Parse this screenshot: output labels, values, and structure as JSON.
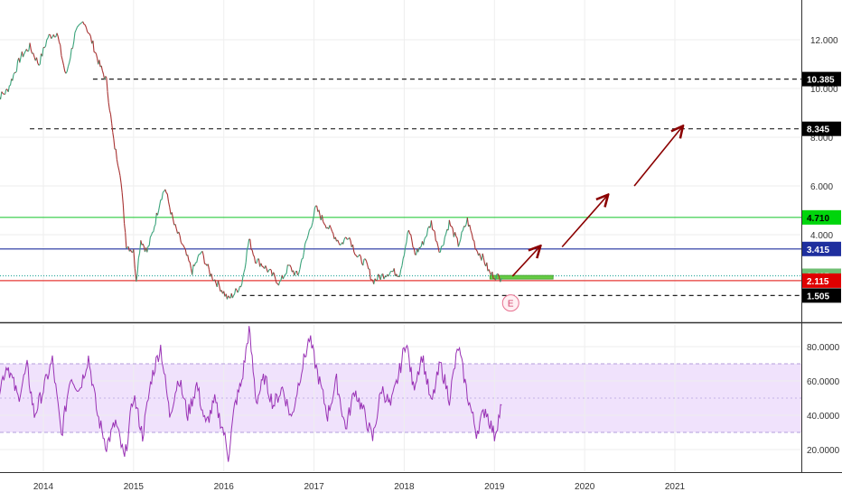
{
  "chart_data": [
    {
      "type": "line",
      "title": "",
      "xlabel": "",
      "ylabel": "",
      "x_ticks": [
        "2014",
        "2015",
        "2016",
        "2017",
        "2018",
        "2019",
        "2020",
        "2021"
      ],
      "y_ticks": [
        "12.000",
        "10.000",
        "8.000",
        "6.000",
        "4.000"
      ],
      "ylim": [
        1.0,
        13.6
      ],
      "grid": true,
      "series": [
        {
          "name": "",
          "color": "#a83232",
          "points": [
            [
              2013.45,
              9.5
            ],
            [
              2013.6,
              9.9
            ],
            [
              2013.75,
              11.3
            ],
            [
              2013.85,
              11.7
            ],
            [
              2013.95,
              11.0
            ],
            [
              2014.05,
              12.1
            ],
            [
              2014.15,
              12.3
            ],
            [
              2014.25,
              10.5
            ],
            [
              2014.35,
              12.2
            ],
            [
              2014.45,
              12.8
            ],
            [
              2014.55,
              11.8
            ],
            [
              2014.62,
              11.0
            ],
            [
              2014.7,
              10.3
            ],
            [
              2014.78,
              7.8
            ],
            [
              2014.85,
              6.6
            ],
            [
              2014.92,
              3.6
            ],
            [
              2015.0,
              3.3
            ],
            [
              2015.03,
              2.2
            ],
            [
              2015.08,
              3.8
            ],
            [
              2015.15,
              3.3
            ],
            [
              2015.22,
              4.2
            ],
            [
              2015.3,
              5.5
            ],
            [
              2015.35,
              5.9
            ],
            [
              2015.45,
              4.4
            ],
            [
              2015.55,
              3.5
            ],
            [
              2015.65,
              2.5
            ],
            [
              2015.75,
              3.3
            ],
            [
              2015.85,
              2.4
            ],
            [
              2015.95,
              1.9
            ],
            [
              2016.05,
              1.35
            ],
            [
              2016.12,
              1.6
            ],
            [
              2016.2,
              2.0
            ],
            [
              2016.28,
              3.8
            ],
            [
              2016.35,
              3.0
            ],
            [
              2016.45,
              2.7
            ],
            [
              2016.55,
              2.3
            ],
            [
              2016.62,
              2.0
            ],
            [
              2016.72,
              2.7
            ],
            [
              2016.82,
              2.3
            ],
            [
              2016.9,
              3.5
            ],
            [
              2017.02,
              5.1
            ],
            [
              2017.1,
              4.6
            ],
            [
              2017.2,
              4.1
            ],
            [
              2017.3,
              3.6
            ],
            [
              2017.38,
              4.0
            ],
            [
              2017.48,
              3.1
            ],
            [
              2017.58,
              2.8
            ],
            [
              2017.65,
              2.1
            ],
            [
              2017.75,
              2.3
            ],
            [
              2017.85,
              2.5
            ],
            [
              2017.95,
              2.4
            ],
            [
              2018.05,
              4.2
            ],
            [
              2018.12,
              3.2
            ],
            [
              2018.2,
              3.6
            ],
            [
              2018.3,
              4.5
            ],
            [
              2018.4,
              3.3
            ],
            [
              2018.5,
              4.5
            ],
            [
              2018.6,
              3.6
            ],
            [
              2018.7,
              4.6
            ],
            [
              2018.8,
              3.4
            ],
            [
              2018.88,
              3.0
            ],
            [
              2018.95,
              2.4
            ],
            [
              2019.05,
              2.25
            ],
            [
              2019.08,
              2.22
            ]
          ]
        },
        {
          "name": "",
          "color": "#9932b5",
          "points": [
            [
              2013.45,
              45
            ],
            [
              2013.6,
              70
            ],
            [
              2013.72,
              50
            ],
            [
              2013.82,
              68
            ],
            [
              2013.9,
              40
            ],
            [
              2014.0,
              55
            ],
            [
              2014.1,
              72
            ],
            [
              2014.2,
              28
            ],
            [
              2014.3,
              63
            ],
            [
              2014.4,
              55
            ],
            [
              2014.5,
              74
            ],
            [
              2014.6,
              40
            ],
            [
              2014.7,
              22
            ],
            [
              2014.8,
              36
            ],
            [
              2014.9,
              14
            ],
            [
              2015.0,
              52
            ],
            [
              2015.1,
              28
            ],
            [
              2015.2,
              62
            ],
            [
              2015.3,
              80
            ],
            [
              2015.4,
              40
            ],
            [
              2015.5,
              62
            ],
            [
              2015.6,
              40
            ],
            [
              2015.7,
              58
            ],
            [
              2015.8,
              34
            ],
            [
              2015.9,
              48
            ],
            [
              2016.0,
              30
            ],
            [
              2016.05,
              16
            ],
            [
              2016.12,
              45
            ],
            [
              2016.2,
              60
            ],
            [
              2016.28,
              90
            ],
            [
              2016.36,
              48
            ],
            [
              2016.45,
              62
            ],
            [
              2016.55,
              46
            ],
            [
              2016.65,
              56
            ],
            [
              2016.75,
              38
            ],
            [
              2016.85,
              64
            ],
            [
              2016.95,
              85
            ],
            [
              2017.05,
              62
            ],
            [
              2017.15,
              40
            ],
            [
              2017.25,
              60
            ],
            [
              2017.35,
              32
            ],
            [
              2017.45,
              55
            ],
            [
              2017.55,
              42
            ],
            [
              2017.65,
              26
            ],
            [
              2017.75,
              56
            ],
            [
              2017.85,
              45
            ],
            [
              2017.95,
              66
            ],
            [
              2018.02,
              84
            ],
            [
              2018.1,
              56
            ],
            [
              2018.2,
              75
            ],
            [
              2018.3,
              46
            ],
            [
              2018.4,
              70
            ],
            [
              2018.5,
              50
            ],
            [
              2018.6,
              80
            ],
            [
              2018.7,
              52
            ],
            [
              2018.8,
              30
            ],
            [
              2018.9,
              44
            ],
            [
              2019.0,
              28
            ],
            [
              2019.08,
              46
            ]
          ]
        }
      ],
      "levels": [
        {
          "value": 10.385,
          "label": "10.385",
          "style": "dashed",
          "color": "#222222",
          "from": 2014.55
        },
        {
          "value": 8.345,
          "label": "8.345",
          "style": "dashed",
          "color": "#222222",
          "from": 2013.85
        },
        {
          "value": 4.71,
          "label": "4.710",
          "style": "solid",
          "color": "#2ecc40",
          "from": 2013.4
        },
        {
          "value": 3.415,
          "label": "3.415",
          "style": "solid",
          "color": "#1f2f9e",
          "from": 2013.4
        },
        {
          "value": 2.315,
          "label": "2.315",
          "style": "dotted",
          "color": "#26a69a",
          "from": 2013.4
        },
        {
          "value": 2.115,
          "label": "2.115",
          "style": "solid",
          "color": "#e53935",
          "from": 2013.4
        },
        {
          "value": 1.505,
          "label": "1.505",
          "style": "dashed",
          "color": "#222222",
          "from": 2016.2
        }
      ],
      "price_badges": [
        {
          "value": 10.385,
          "label": "10.385",
          "bg": "#000000",
          "fg": "#ffffff"
        },
        {
          "value": 8.345,
          "label": "8.345",
          "bg": "#000000",
          "fg": "#ffffff"
        },
        {
          "value": 4.71,
          "label": "4.710",
          "bg": "#00d50c",
          "fg": "#000000"
        },
        {
          "value": 3.415,
          "label": "3.415",
          "bg": "#1f2f9e",
          "fg": "#ffffff"
        },
        {
          "value": 2.315,
          "label": "2.315",
          "bg": "#6fbf73",
          "fg": "#ffffff"
        },
        {
          "value": 2.115,
          "label": "2.115",
          "bg": "#e00000",
          "fg": "#ffffff"
        },
        {
          "value": 1.505,
          "label": "1.505",
          "bg": "#000000",
          "fg": "#ffffff"
        }
      ],
      "arrows": [
        {
          "from": [
            2019.2,
            2.3
          ],
          "to": [
            2019.5,
            3.5
          ]
        },
        {
          "from": [
            2019.75,
            3.5
          ],
          "to": [
            2020.25,
            5.6
          ]
        },
        {
          "from": [
            2020.55,
            6.0
          ],
          "to": [
            2021.08,
            8.42
          ]
        }
      ],
      "target_zone": {
        "x_from": 2018.95,
        "x_to": 2019.65,
        "y_from": 2.18,
        "y_to": 2.33,
        "color": "#66cc44"
      },
      "event_marker": {
        "x": 2019.18,
        "y": 1.2,
        "label": "E"
      }
    },
    {
      "type": "line",
      "title": "",
      "ylabel": "",
      "y_ticks": [
        "80.0000",
        "60.0000",
        "40.0000",
        "20.0000"
      ],
      "ylim": [
        5,
        95
      ],
      "band": {
        "from": 30,
        "to": 70,
        "color": "#e9d5fb"
      },
      "midline": 50
    }
  ]
}
